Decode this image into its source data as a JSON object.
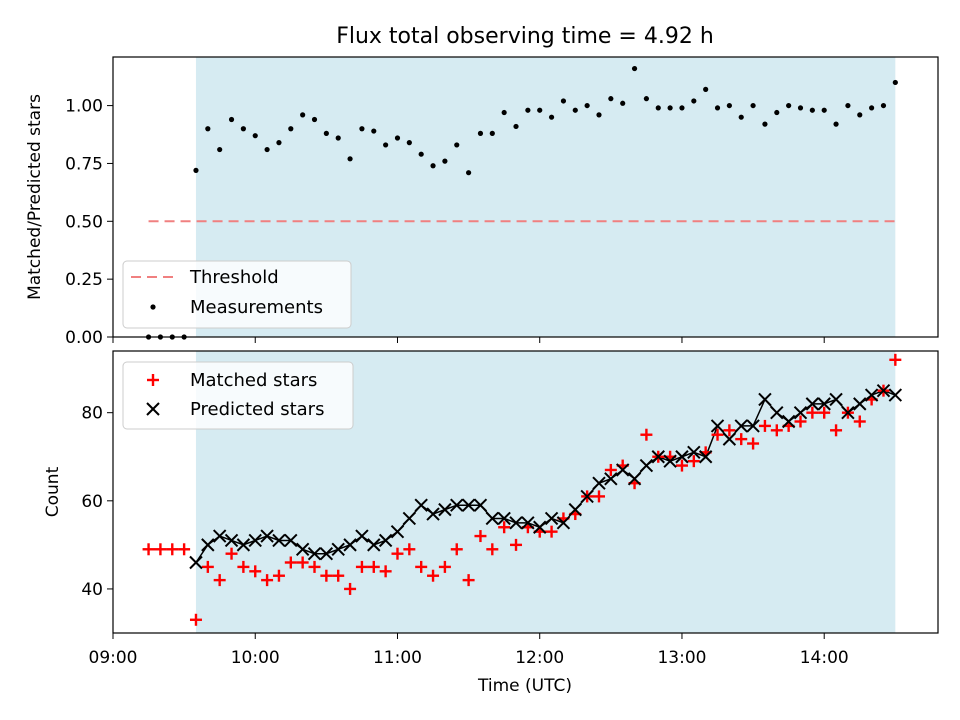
{
  "chart_data": [
    {
      "type": "scatter",
      "title": "Flux total observing time = 4.92 h",
      "xlabel": "",
      "ylabel": "Matched/Predicted stars",
      "xlim": [
        "09:00",
        "14:48"
      ],
      "ylim": [
        0,
        1.21
      ],
      "yticks": [
        "0.00",
        "0.25",
        "0.50",
        "0.75",
        "1.00"
      ],
      "observing_window": [
        "09:35",
        "14:30"
      ],
      "threshold": {
        "name": "Threshold",
        "value": 0.5,
        "x": [
          "09:15",
          "14:30"
        ],
        "color": "#f08080"
      },
      "series": [
        {
          "name": "Measurements",
          "color": "#000000",
          "x": [
            "09:15",
            "09:20",
            "09:25",
            "09:30",
            "09:35",
            "09:40",
            "09:45",
            "09:50",
            "09:55",
            "10:00",
            "10:05",
            "10:10",
            "10:15",
            "10:20",
            "10:25",
            "10:30",
            "10:35",
            "10:40",
            "10:45",
            "10:50",
            "10:55",
            "11:00",
            "11:05",
            "11:10",
            "11:15",
            "11:20",
            "11:25",
            "11:30",
            "11:35",
            "11:40",
            "11:45",
            "11:50",
            "11:55",
            "12:00",
            "12:05",
            "12:10",
            "12:15",
            "12:20",
            "12:25",
            "12:30",
            "12:35",
            "12:40",
            "12:45",
            "12:50",
            "12:55",
            "13:00",
            "13:05",
            "13:10",
            "13:15",
            "13:20",
            "13:25",
            "13:30",
            "13:35",
            "13:40",
            "13:45",
            "13:50",
            "13:55",
            "14:00",
            "14:05",
            "14:10",
            "14:15",
            "14:20",
            "14:25",
            "14:30"
          ],
          "y": [
            0,
            0,
            0,
            0,
            0.72,
            0.9,
            0.81,
            0.94,
            0.9,
            0.87,
            0.81,
            0.84,
            0.9,
            0.96,
            0.94,
            0.88,
            0.86,
            0.77,
            0.9,
            0.89,
            0.83,
            0.86,
            0.84,
            0.79,
            0.74,
            0.76,
            0.83,
            0.71,
            0.88,
            0.88,
            0.97,
            0.91,
            0.98,
            0.98,
            0.95,
            1.02,
            0.98,
            1.0,
            0.96,
            1.03,
            1.01,
            1.16,
            1.03,
            0.99,
            0.99,
            0.99,
            1.02,
            1.07,
            0.99,
            1.0,
            0.95,
            1.0,
            0.92,
            0.97,
            1.0,
            0.99,
            0.98,
            0.98,
            0.92,
            1.0,
            0.96,
            0.99,
            1.0,
            1.1
          ]
        }
      ],
      "legend": {
        "placement": "lower-left",
        "entries": [
          "Threshold",
          "Measurements"
        ]
      }
    },
    {
      "type": "scatter",
      "title": "",
      "xlabel": "Time (UTC)",
      "ylabel": "Count",
      "xlim": [
        "09:00",
        "14:48"
      ],
      "ylim": [
        30,
        94
      ],
      "xticks": [
        "09:00",
        "10:00",
        "11:00",
        "12:00",
        "13:00",
        "14:00"
      ],
      "yticks": [
        "40",
        "60",
        "80"
      ],
      "observing_window": [
        "09:35",
        "14:30"
      ],
      "series": [
        {
          "name": "Matched stars",
          "color": "#ff0000",
          "marker": "plus",
          "x": [
            "09:15",
            "09:20",
            "09:25",
            "09:30",
            "09:35",
            "09:40",
            "09:45",
            "09:50",
            "09:55",
            "10:00",
            "10:05",
            "10:10",
            "10:15",
            "10:20",
            "10:25",
            "10:30",
            "10:35",
            "10:40",
            "10:45",
            "10:50",
            "10:55",
            "11:00",
            "11:05",
            "11:10",
            "11:15",
            "11:20",
            "11:25",
            "11:30",
            "11:35",
            "11:40",
            "11:45",
            "11:50",
            "11:55",
            "12:00",
            "12:05",
            "12:10",
            "12:15",
            "12:20",
            "12:25",
            "12:30",
            "12:35",
            "12:40",
            "12:45",
            "12:50",
            "12:55",
            "13:00",
            "13:05",
            "13:10",
            "13:15",
            "13:20",
            "13:25",
            "13:30",
            "13:35",
            "13:40",
            "13:45",
            "13:50",
            "13:55",
            "14:00",
            "14:05",
            "14:10",
            "14:15",
            "14:20",
            "14:25",
            "14:30"
          ],
          "y": [
            49,
            49,
            49,
            49,
            33,
            45,
            42,
            48,
            45,
            44,
            42,
            43,
            46,
            46,
            45,
            43,
            43,
            40,
            45,
            45,
            44,
            48,
            49,
            45,
            43,
            45,
            49,
            42,
            52,
            49,
            54,
            50,
            54,
            53,
            53,
            56,
            57,
            61,
            61,
            67,
            68,
            64,
            75,
            70,
            70,
            68,
            69,
            71,
            75,
            76,
            74,
            73,
            77,
            76,
            77,
            78,
            80,
            80,
            76,
            80,
            78,
            83,
            85,
            92
          ]
        },
        {
          "name": "Predicted stars",
          "color": "#000000",
          "marker": "x",
          "x": [
            "09:35",
            "09:40",
            "09:45",
            "09:50",
            "09:55",
            "10:00",
            "10:05",
            "10:10",
            "10:15",
            "10:20",
            "10:25",
            "10:30",
            "10:35",
            "10:40",
            "10:45",
            "10:50",
            "10:55",
            "11:00",
            "11:05",
            "11:10",
            "11:15",
            "11:20",
            "11:25",
            "11:30",
            "11:35",
            "11:40",
            "11:45",
            "11:50",
            "11:55",
            "12:00",
            "12:05",
            "12:10",
            "12:15",
            "12:20",
            "12:25",
            "12:30",
            "12:35",
            "12:40",
            "12:45",
            "12:50",
            "12:55",
            "13:00",
            "13:05",
            "13:10",
            "13:15",
            "13:20",
            "13:25",
            "13:30",
            "13:35",
            "13:40",
            "13:45",
            "13:50",
            "13:55",
            "14:00",
            "14:05",
            "14:10",
            "14:15",
            "14:20",
            "14:25",
            "14:30"
          ],
          "y": [
            46,
            50,
            52,
            51,
            50,
            51,
            52,
            51,
            51,
            49,
            48,
            48,
            49,
            50,
            52,
            50,
            51,
            53,
            56,
            59,
            57,
            58,
            59,
            59,
            59,
            56,
            56,
            55,
            55,
            54,
            56,
            55,
            58,
            61,
            64,
            65,
            67,
            65,
            68,
            70,
            69,
            70,
            71,
            70,
            77,
            74,
            77,
            77,
            83,
            80,
            78,
            80,
            82,
            82,
            83,
            80,
            82,
            84,
            85,
            84
          ]
        }
      ],
      "legend": {
        "placement": "upper-left",
        "entries": [
          "Matched stars",
          "Predicted stars"
        ]
      }
    }
  ]
}
